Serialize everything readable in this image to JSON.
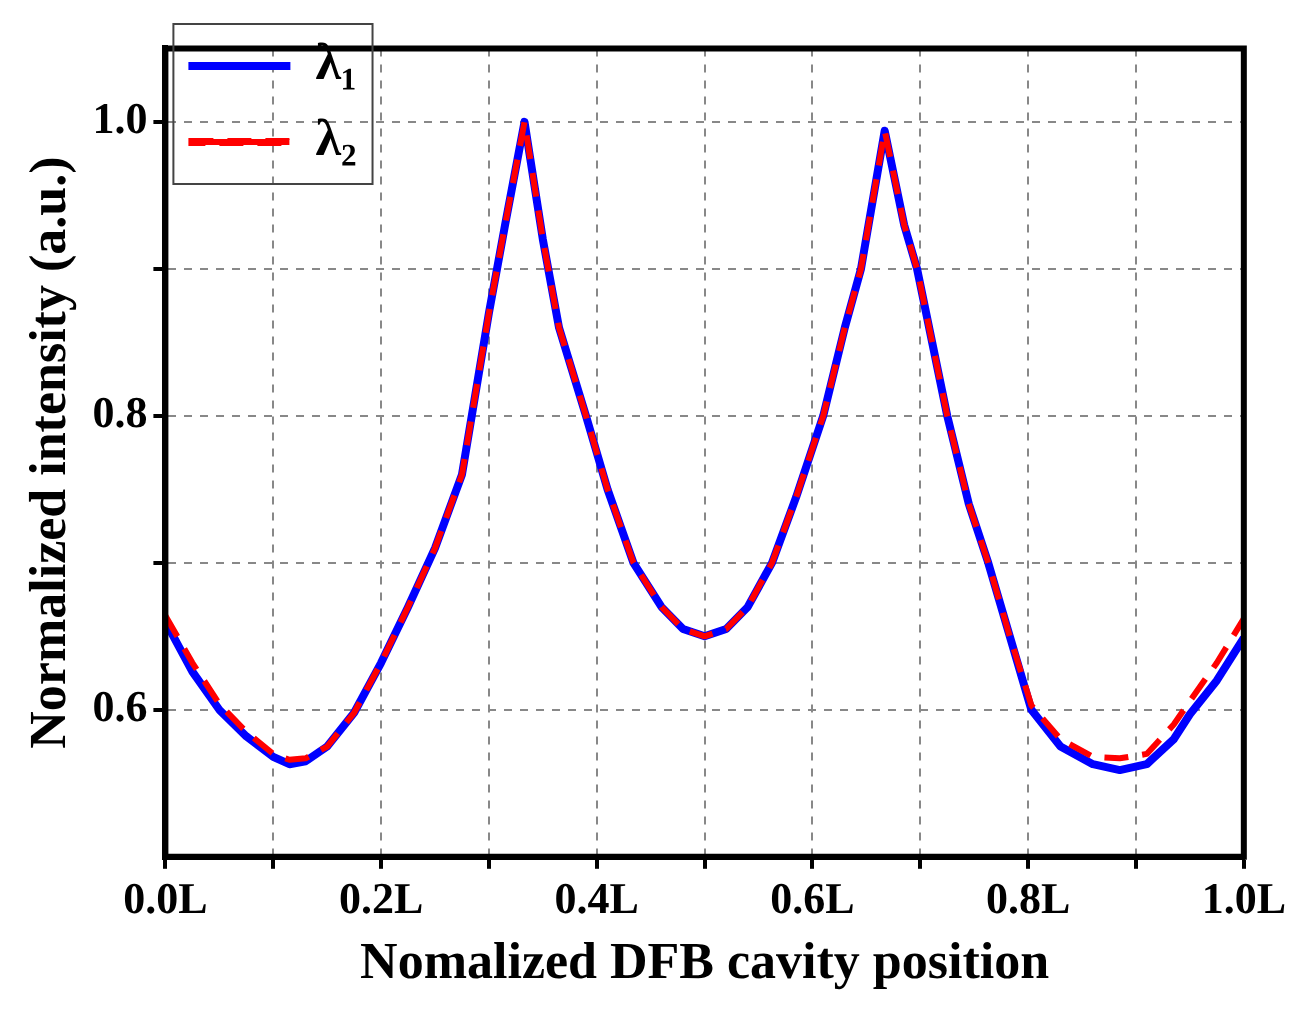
{
  "chart_data": {
    "type": "line",
    "xlabel": "Nomalized DFB cavity position",
    "ylabel": "Normalized intensity (a.u.)",
    "x": [
      0,
      0.025,
      0.05,
      0.075,
      0.1,
      0.115,
      0.13,
      0.15,
      0.175,
      0.2,
      0.225,
      0.25,
      0.275,
      0.3,
      0.315,
      0.333,
      0.35,
      0.365,
      0.39,
      0.41,
      0.434,
      0.46,
      0.48,
      0.5,
      0.52,
      0.54,
      0.5625,
      0.585,
      0.61,
      0.63,
      0.645,
      0.667,
      0.685,
      0.697,
      0.725,
      0.745,
      0.763,
      0.783,
      0.803,
      0.83,
      0.86,
      0.885,
      0.91,
      0.935,
      0.95,
      0.975,
      1.0
    ],
    "series": [
      {
        "name": "λ₁",
        "color": "#0000ff",
        "line_style": "solid",
        "values": [
          0.66,
          0.626,
          0.6,
          0.582,
          0.568,
          0.563,
          0.565,
          0.575,
          0.598,
          0.632,
          0.67,
          0.71,
          0.76,
          0.87,
          0.93,
          1.0,
          0.92,
          0.86,
          0.8,
          0.75,
          0.7,
          0.67,
          0.655,
          0.65,
          0.655,
          0.67,
          0.7,
          0.745,
          0.8,
          0.86,
          0.9,
          0.994,
          0.93,
          0.9,
          0.8,
          0.74,
          0.7,
          0.65,
          0.6,
          0.575,
          0.563,
          0.559,
          0.563,
          0.58,
          0.597,
          0.62,
          0.649
        ]
      },
      {
        "name": "λ₂",
        "color": "#ff0000",
        "line_style": "dashed",
        "values": [
          0.664,
          0.632,
          0.604,
          0.585,
          0.57,
          0.566,
          0.567,
          0.575,
          0.598,
          0.632,
          0.67,
          0.71,
          0.76,
          0.87,
          0.93,
          1.0,
          0.92,
          0.86,
          0.8,
          0.75,
          0.7,
          0.67,
          0.655,
          0.65,
          0.655,
          0.67,
          0.7,
          0.745,
          0.8,
          0.86,
          0.9,
          0.994,
          0.93,
          0.9,
          0.8,
          0.74,
          0.7,
          0.65,
          0.603,
          0.58,
          0.568,
          0.567,
          0.57,
          0.59,
          0.606,
          0.632,
          0.662
        ]
      }
    ],
    "xlim": [
      0,
      1
    ],
    "xticks": [
      {
        "value": 0,
        "label": "0.0L"
      },
      {
        "value": 0.1,
        "label": null
      },
      {
        "value": 0.2,
        "label": "0.2L"
      },
      {
        "value": 0.3,
        "label": null
      },
      {
        "value": 0.4,
        "label": "0.4L"
      },
      {
        "value": 0.5,
        "label": null
      },
      {
        "value": 0.6,
        "label": "0.6L"
      },
      {
        "value": 0.7,
        "label": null
      },
      {
        "value": 0.8,
        "label": "0.8L"
      },
      {
        "value": 0.9,
        "label": null
      },
      {
        "value": 1,
        "label": "1.0L"
      }
    ],
    "ylim": [
      0.5,
      1.05
    ],
    "yticks": [
      0.6,
      {
        "value": 0.7,
        "label": null
      },
      0.8,
      {
        "value": 0.9,
        "label": null
      },
      {
        "value": 1,
        "label": "1.0"
      }
    ],
    "grid": true,
    "legend": "top left",
    "marker": "none"
  }
}
